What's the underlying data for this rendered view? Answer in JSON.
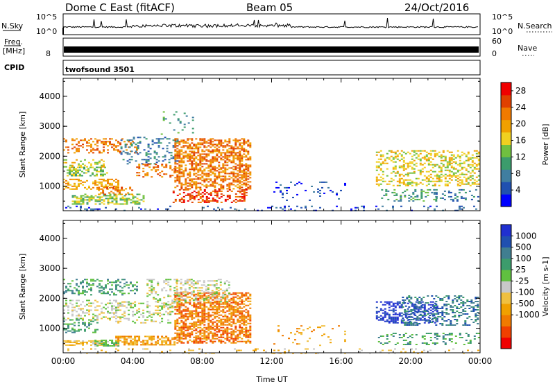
{
  "header": {
    "station": "Dome C East (fitACF)",
    "beam": "Beam 05",
    "date": "24/Oct/2016"
  },
  "panels": {
    "nsky_label": "N.Sky",
    "nsky_ticks": [
      "10^5",
      "10^0"
    ],
    "nsearch_label": "N.Search",
    "nsearch_ticks": [
      "10^5",
      "10^0"
    ],
    "freq_label": "Freq.",
    "freq_unit": "[MHz]",
    "freq_ticks": [
      "8"
    ],
    "nave_label": "Nave",
    "nave_ticks": [
      "60",
      "0"
    ],
    "cpid_label": "CPID",
    "cpid_value": "twofsound 3501"
  },
  "colors": {
    "power": [
      "#0000ff",
      "#2050b0",
      "#407ea0",
      "#3c9c6c",
      "#70c040",
      "#f0d020",
      "#f0a000",
      "#f07a00",
      "#e04000",
      "#f00000"
    ],
    "velocity": [
      "#f00000",
      "#f04000",
      "#f07a00",
      "#f0a000",
      "#f0c040",
      "#c8c8c8",
      "#60c040",
      "#3c9c6c",
      "#407e90",
      "#2050b0",
      "#2030d0"
    ]
  },
  "chart_data": [
    {
      "type": "heatmap",
      "name": "power",
      "ylabel": "Slant Range [km]",
      "yticks": [
        1000,
        2000,
        3000,
        4000
      ],
      "xticks": [
        "00:00",
        "04:00",
        "08:00",
        "12:00",
        "16:00",
        "20:00",
        "00:00"
      ],
      "xlim_hours": [
        0,
        24
      ],
      "ylim_km": [
        180,
        4600
      ],
      "colorbar": {
        "label": "Power [dB]",
        "ticks": [
          4,
          8,
          12,
          16,
          20,
          24,
          28
        ],
        "range": [
          0,
          30
        ]
      },
      "patches": [
        {
          "t": [
            0.0,
            4.3
          ],
          "r": [
            2100,
            2600
          ],
          "c": 7,
          "d": 0.3
        },
        {
          "t": [
            0.2,
            2.5
          ],
          "r": [
            1350,
            1650
          ],
          "c": 4,
          "d": 0.45
        },
        {
          "t": [
            0.0,
            3.2
          ],
          "r": [
            900,
            1250
          ],
          "c": 6,
          "d": 0.45
        },
        {
          "t": [
            0.0,
            2.3
          ],
          "r": [
            1650,
            1900
          ],
          "c": 5,
          "d": 0.35
        },
        {
          "t": [
            0.5,
            4.6
          ],
          "r": [
            420,
            750
          ],
          "c": 4,
          "d": 0.55
        },
        {
          "t": [
            2.0,
            4.0
          ],
          "r": [
            720,
            980
          ],
          "c": 7,
          "d": 0.4
        },
        {
          "t": [
            3.3,
            6.6
          ],
          "r": [
            1750,
            2650
          ],
          "c": 2,
          "d": 0.22
        },
        {
          "t": [
            4.2,
            6.4
          ],
          "r": [
            1300,
            1750
          ],
          "c": 7,
          "d": 0.3
        },
        {
          "t": [
            6.4,
            10.8
          ],
          "r": [
            900,
            2600
          ],
          "c": 7,
          "d": 0.55
        },
        {
          "t": [
            6.3,
            10.5
          ],
          "r": [
            450,
            900
          ],
          "c": 8,
          "d": 0.35
        },
        {
          "t": [
            5.5,
            7.5
          ],
          "r": [
            2700,
            3500
          ],
          "c": 3,
          "d": 0.08
        },
        {
          "t": [
            12.1,
            16.2
          ],
          "r": [
            550,
            1200
          ],
          "c": 1,
          "d": 0.08
        },
        {
          "t": [
            18.0,
            23.9
          ],
          "r": [
            1000,
            2200
          ],
          "c": 5,
          "d": 0.38
        },
        {
          "t": [
            18.3,
            21.5
          ],
          "r": [
            500,
            900
          ],
          "c": 3,
          "d": 0.25
        },
        {
          "t": [
            21.2,
            23.9
          ],
          "r": [
            500,
            900
          ],
          "c": 2,
          "d": 0.25
        },
        {
          "t": [
            0.0,
            24.0
          ],
          "r": [
            180,
            350
          ],
          "c": 1,
          "d": 0.12
        }
      ]
    },
    {
      "type": "heatmap",
      "name": "velocity",
      "ylabel": "Slant Range [km]",
      "yticks": [
        1000,
        2000,
        3000,
        4000
      ],
      "xticks": [
        "00:00",
        "04:00",
        "08:00",
        "12:00",
        "16:00",
        "20:00",
        "00:00"
      ],
      "xlabel": "Time UT",
      "xlim_hours": [
        0,
        24
      ],
      "ylim_km": [
        180,
        4600
      ],
      "colorbar": {
        "label": "Velocity [m s-1]",
        "ticks": [
          "1000",
          "500",
          "100",
          "25",
          "-25",
          "-100",
          "-500",
          "-1000"
        ]
      },
      "patches": [
        {
          "t": [
            0.0,
            4.3
          ],
          "r": [
            2100,
            2650
          ],
          "c": 7,
          "d": 0.3
        },
        {
          "t": [
            0.0,
            3.5
          ],
          "r": [
            1300,
            1950
          ],
          "c": 5,
          "d": 0.3
        },
        {
          "t": [
            0.0,
            2.0
          ],
          "r": [
            850,
            1300
          ],
          "c": 7,
          "d": 0.35
        },
        {
          "t": [
            0.0,
            2.5
          ],
          "r": [
            430,
            600
          ],
          "c": 4,
          "d": 0.6
        },
        {
          "t": [
            1.8,
            3.2
          ],
          "r": [
            430,
            620
          ],
          "c": 6,
          "d": 0.65
        },
        {
          "t": [
            3.0,
            6.5
          ],
          "r": [
            430,
            750
          ],
          "c": 3,
          "d": 0.6
        },
        {
          "t": [
            3.0,
            6.4
          ],
          "r": [
            1200,
            1900
          ],
          "c": 5,
          "d": 0.3
        },
        {
          "t": [
            4.8,
            6.8
          ],
          "r": [
            1700,
            2650
          ],
          "c": 5,
          "d": 0.25
        },
        {
          "t": [
            6.4,
            10.8
          ],
          "r": [
            500,
            2200
          ],
          "c": 2,
          "d": 0.6
        },
        {
          "t": [
            6.5,
            9.5
          ],
          "r": [
            1900,
            2650
          ],
          "c": 5,
          "d": 0.3
        },
        {
          "t": [
            12.1,
            16.2
          ],
          "r": [
            450,
            1100
          ],
          "c": 3,
          "d": 0.07
        },
        {
          "t": [
            18.0,
            21.5
          ],
          "r": [
            1200,
            1900
          ],
          "c": 10,
          "d": 0.4
        },
        {
          "t": [
            19.5,
            23.9
          ],
          "r": [
            1100,
            2100
          ],
          "c": 8,
          "d": 0.35
        },
        {
          "t": [
            18.0,
            23.9
          ],
          "r": [
            450,
            850
          ],
          "c": 7,
          "d": 0.22
        },
        {
          "t": [
            0.0,
            24.0
          ],
          "r": [
            180,
            330
          ],
          "c": 4,
          "d": 0.1
        }
      ]
    }
  ]
}
